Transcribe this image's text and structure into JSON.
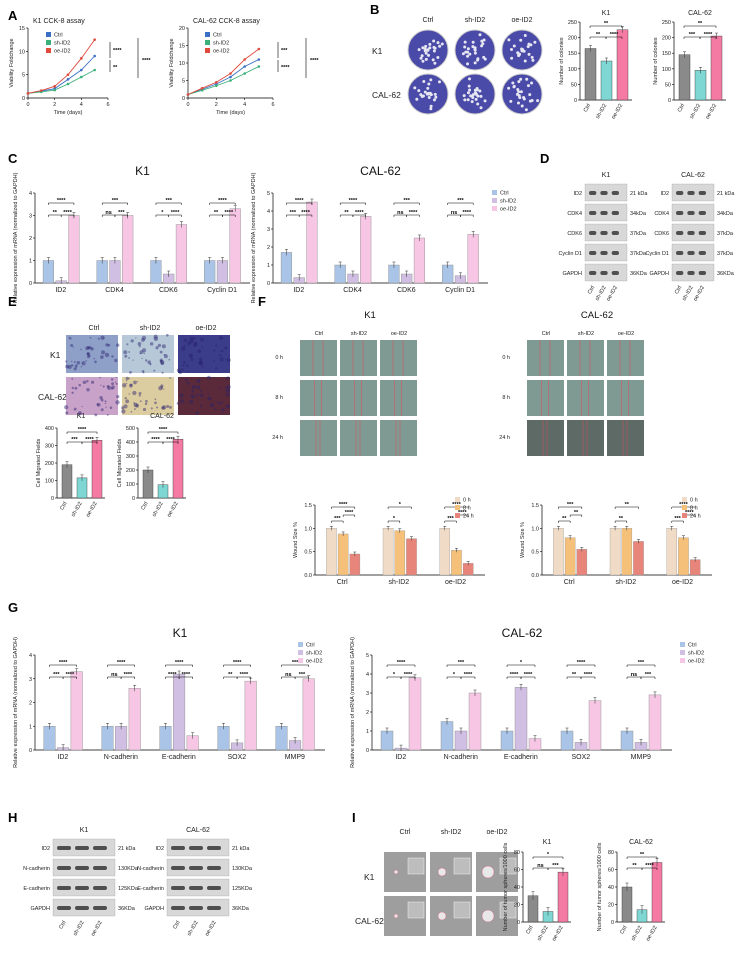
{
  "colors": {
    "ctrl": "#a9c4e6",
    "sh": "#d1bfe3",
    "oe": "#f6c6e4",
    "ctrlLine": "#3a6fc4",
    "shLine": "#39b07a",
    "oeLine": "#e04a3c",
    "barCtrl": "#8a8a8a",
    "barSh": "#7ed7d2",
    "barOe": "#f47aa3",
    "wound0": "#f0dcc6",
    "wound8": "#f4c07a",
    "wound24": "#e8857a"
  },
  "panels": [
    "A",
    "B",
    "C",
    "D",
    "E",
    "F",
    "G",
    "H",
    "I"
  ],
  "panelA": {
    "charts": [
      {
        "title": "K1 CCK-8 assay",
        "xlabel": "Time  (days)",
        "ylabel": "Viability Foldchange",
        "yticks": [
          "0",
          "5",
          "10",
          "15"
        ],
        "xticks": [
          "0",
          "2",
          "4",
          "6"
        ],
        "legend": [
          "Ctrl",
          "sh-ID2",
          "oe-ID2"
        ],
        "sig": [
          "****",
          "**",
          "****"
        ]
      },
      {
        "title": "CAL-62 CCK-8 assay",
        "xlabel": "Time  (days)",
        "ylabel": "Viability Foldchange",
        "yticks": [
          "0",
          "5",
          "10",
          "15",
          "20"
        ],
        "xticks": [
          "0",
          "2",
          "4",
          "6"
        ],
        "legend": [
          "Ctrl",
          "sh-ID2",
          "oe-ID2"
        ],
        "sig": [
          "***",
          "****",
          "****"
        ]
      }
    ]
  },
  "panelB": {
    "cols": [
      "Ctrl",
      "sh-ID2",
      "oe-ID2"
    ],
    "rows": [
      "K1",
      "CAL-62"
    ],
    "charts": [
      {
        "title": "K1",
        "ylabel": "Number of colonies",
        "yticks": [
          "0",
          "50",
          "100",
          "150",
          "200",
          "250"
        ],
        "cats": [
          "Ctrl",
          "sh-ID2",
          "oe-ID2"
        ],
        "values": [
          165,
          125,
          225
        ],
        "sig": [
          "**",
          "**",
          "****"
        ]
      },
      {
        "title": "CAL-62",
        "ylabel": "Number of colonies",
        "yticks": [
          "0",
          "50",
          "100",
          "150",
          "200",
          "250"
        ],
        "cats": [
          "Ctrl",
          "sh-ID2",
          "oe-ID2"
        ],
        "values": [
          145,
          95,
          205
        ],
        "sig": [
          "***",
          "**",
          "****"
        ]
      }
    ]
  },
  "panelC": {
    "charts": [
      {
        "title": "K1",
        "ylabel": "Relative expression of mRNA (normalized to GAPDH)",
        "yticks": [
          "0",
          "1",
          "2",
          "3",
          "4"
        ],
        "cats": [
          "ID2",
          "CDK4",
          "CDK6",
          "Cyclin D1"
        ],
        "values": [
          [
            1,
            0.1,
            3.0
          ],
          [
            1,
            1,
            3.0
          ],
          [
            1,
            0.4,
            2.6
          ],
          [
            1,
            1,
            3.3
          ]
        ],
        "sig": [
          [
            "**",
            "****",
            "****"
          ],
          [
            "ns",
            "***",
            "***"
          ],
          [
            "*",
            "****",
            "***"
          ],
          [
            "**",
            "****",
            "****"
          ]
        ]
      },
      {
        "title": "CAL-62",
        "ylabel": "Relative expression of mRNA (normalized to GAPDH)",
        "yticks": [
          "0",
          "1",
          "2",
          "3",
          "4",
          "5"
        ],
        "cats": [
          "ID2",
          "CDK4",
          "CDK6",
          "Cyclin D1"
        ],
        "values": [
          [
            1.7,
            0.3,
            4.5
          ],
          [
            1,
            0.5,
            3.7
          ],
          [
            1,
            0.5,
            2.5
          ],
          [
            1,
            0.4,
            2.7
          ]
        ],
        "sig": [
          [
            "***",
            "****",
            "****"
          ],
          [
            "**",
            "****",
            "****"
          ],
          [
            "ns",
            "****",
            "***"
          ],
          [
            "ns",
            "****",
            "***"
          ]
        ]
      }
    ],
    "legend": [
      "Ctrl",
      "sh-ID2",
      "oe-ID2"
    ]
  },
  "panelD": {
    "blots": [
      {
        "title": "K1",
        "rows": [
          "ID2",
          "CDK4",
          "CDK6",
          "Cyclin D1",
          "GAPDH"
        ],
        "sizes": [
          "21 kDa",
          "34kDa",
          "37kDa",
          "37kDa",
          "36KDa"
        ],
        "cols": [
          "Ctrl",
          "sh-ID2",
          "oe-ID2"
        ]
      },
      {
        "title": "CAL-62",
        "rows": [
          "ID2",
          "CDK4",
          "CDK6",
          "Cyclin D1",
          "GAPDH"
        ],
        "sizes": [
          "21 kDa",
          "34kDa",
          "37kDa",
          "37kDa",
          "36KDa"
        ],
        "cols": [
          "Ctrl",
          "sh-ID2",
          "oe-ID2"
        ]
      }
    ]
  },
  "panelE": {
    "cols": [
      "Ctrl",
      "sh-ID2",
      "oe-ID2"
    ],
    "rows": [
      "K1",
      "CAL-62"
    ],
    "charts": [
      {
        "title": "K1",
        "ylabel": "Cell Migrated Fields",
        "yticks": [
          "0",
          "100",
          "200",
          "300",
          "400"
        ],
        "cats": [
          "Ctrl",
          "sh-ID2",
          "oe-ID2"
        ],
        "values": [
          190,
          115,
          330
        ],
        "sig": [
          "***",
          "****",
          "****"
        ]
      },
      {
        "title": "CAL-62",
        "ylabel": "Cell Migrated Fields",
        "yticks": [
          "0",
          "100",
          "200",
          "300",
          "400",
          "500"
        ],
        "cats": [
          "Ctrl",
          "sh-ID2",
          "oe-ID2"
        ],
        "values": [
          200,
          95,
          420
        ],
        "sig": [
          "****",
          "****",
          "****"
        ]
      }
    ]
  },
  "panelF": {
    "groups": [
      {
        "title": "K1",
        "cols": [
          "Ctrl",
          "sh-ID2",
          "oe-ID2"
        ],
        "rows": [
          "0 h",
          "8 h",
          "24 h"
        ],
        "chart": {
          "ylabel": "Wound Size %",
          "yticks": [
            "0.0",
            "0.5",
            "1.0",
            "1.5"
          ],
          "cats": [
            "Ctrl",
            "sh-ID2",
            "oe-ID2"
          ],
          "values": [
            [
              1.0,
              0.88,
              0.45
            ],
            [
              1.0,
              0.95,
              0.78
            ],
            [
              1.0,
              0.53,
              0.25
            ]
          ],
          "sig": [
            [
              "****",
              "***",
              "****"
            ],
            [
              "*",
              "*",
              ""
            ],
            [
              "****",
              "***",
              "****"
            ]
          ]
        }
      },
      {
        "title": "CAL-62",
        "cols": [
          "Ctrl",
          "sh-ID2",
          "oe-ID2"
        ],
        "rows": [
          "0 h",
          "8 h",
          "24 h"
        ],
        "chart": {
          "ylabel": "Wound Size %",
          "yticks": [
            "0.0",
            "0.5",
            "1.0",
            "1.5"
          ],
          "cats": [
            "Ctrl",
            "sh-ID2",
            "oe-ID2"
          ],
          "values": [
            [
              1.0,
              0.8,
              0.55
            ],
            [
              1.0,
              1.0,
              0.72
            ],
            [
              1.0,
              0.8,
              0.33
            ]
          ],
          "sig": [
            [
              "***",
              "**",
              "**"
            ],
            [
              "**",
              "**",
              ""
            ],
            [
              "****",
              "***",
              "****"
            ]
          ]
        }
      }
    ],
    "legend": [
      "0 h",
      "8 h",
      "24 h"
    ]
  },
  "panelG": {
    "charts": [
      {
        "title": "K1",
        "ylabel": "Relative expression of mRNA (normalized to GAPDH)",
        "yticks": [
          "0",
          "1",
          "2",
          "3",
          "4"
        ],
        "cats": [
          "ID2",
          "N-cadherin",
          "E-cadherin",
          "SOX2",
          "MMP9"
        ],
        "values": [
          [
            1,
            0.1,
            3.3
          ],
          [
            1,
            1,
            2.6
          ],
          [
            1,
            3.2,
            0.6
          ],
          [
            1,
            0.3,
            2.9
          ],
          [
            1,
            0.4,
            3.0
          ]
        ],
        "sig": [
          [
            "***",
            "****",
            "****"
          ],
          [
            "ns",
            "****",
            "****"
          ],
          [
            "****",
            "****",
            "****"
          ],
          [
            "**",
            "****",
            "****"
          ],
          [
            "ns",
            "***",
            "***"
          ]
        ]
      },
      {
        "title": "CAL-62",
        "ylabel": "Relative expression of mRNA (normalized to GAPDH)",
        "yticks": [
          "0",
          "1",
          "2",
          "3",
          "4",
          "5"
        ],
        "cats": [
          "ID2",
          "N-cadherin",
          "E-cadherin",
          "SOX2",
          "MMP9"
        ],
        "values": [
          [
            1,
            0.1,
            3.8
          ],
          [
            1.5,
            1,
            3.0
          ],
          [
            1,
            3.3,
            0.6
          ],
          [
            1,
            0.4,
            2.6
          ],
          [
            1,
            0.4,
            2.9
          ]
        ],
        "sig": [
          [
            "*",
            "****",
            "****"
          ],
          [
            "*",
            "****",
            "***"
          ],
          [
            "****",
            "****",
            "*"
          ],
          [
            "**",
            "****",
            "****"
          ],
          [
            "ns",
            "***",
            "***"
          ]
        ]
      }
    ],
    "legend": [
      "Ctrl",
      "sh-ID2",
      "oe-ID2"
    ]
  },
  "panelH": {
    "blots": [
      {
        "title": "K1",
        "rows": [
          "ID2",
          "N-cadherin",
          "E-cadherin",
          "GAPDH"
        ],
        "sizes": [
          "21 kDa",
          "130KDa",
          "125KDa",
          "36KDa"
        ],
        "cols": [
          "Ctrl",
          "sh-ID2",
          "oe-ID2"
        ]
      },
      {
        "title": "CAL-62",
        "rows": [
          "ID2",
          "N-cadherin",
          "E-cadherin",
          "GAPDH"
        ],
        "sizes": [
          "21 kDa",
          "130KDa",
          "125KDa",
          "36KDa"
        ],
        "cols": [
          "Ctrl",
          "sh-ID2",
          "oe-ID2"
        ]
      }
    ]
  },
  "panelI": {
    "cols": [
      "Ctrl",
      "sh-ID2",
      "oe-ID2"
    ],
    "rows": [
      "K1",
      "CAL-62"
    ],
    "charts": [
      {
        "title": "K1",
        "ylabel": "Number of tumor spheres/1000 cells",
        "yticks": [
          "0",
          "20",
          "40",
          "60",
          "80"
        ],
        "cats": [
          "Ctrl",
          "sh-ID2",
          "oe-ID2"
        ],
        "values": [
          30,
          12,
          57
        ],
        "sig": [
          "ns",
          "***",
          "*"
        ]
      },
      {
        "title": "CAL-62",
        "ylabel": "Number of tumor spheres/1000 cells",
        "yticks": [
          "0",
          "20",
          "40",
          "60",
          "80"
        ],
        "cats": [
          "Ctrl",
          "sh-ID2",
          "oe-ID2"
        ],
        "values": [
          40,
          14,
          68
        ],
        "sig": [
          "**",
          "****",
          "**"
        ]
      }
    ]
  }
}
